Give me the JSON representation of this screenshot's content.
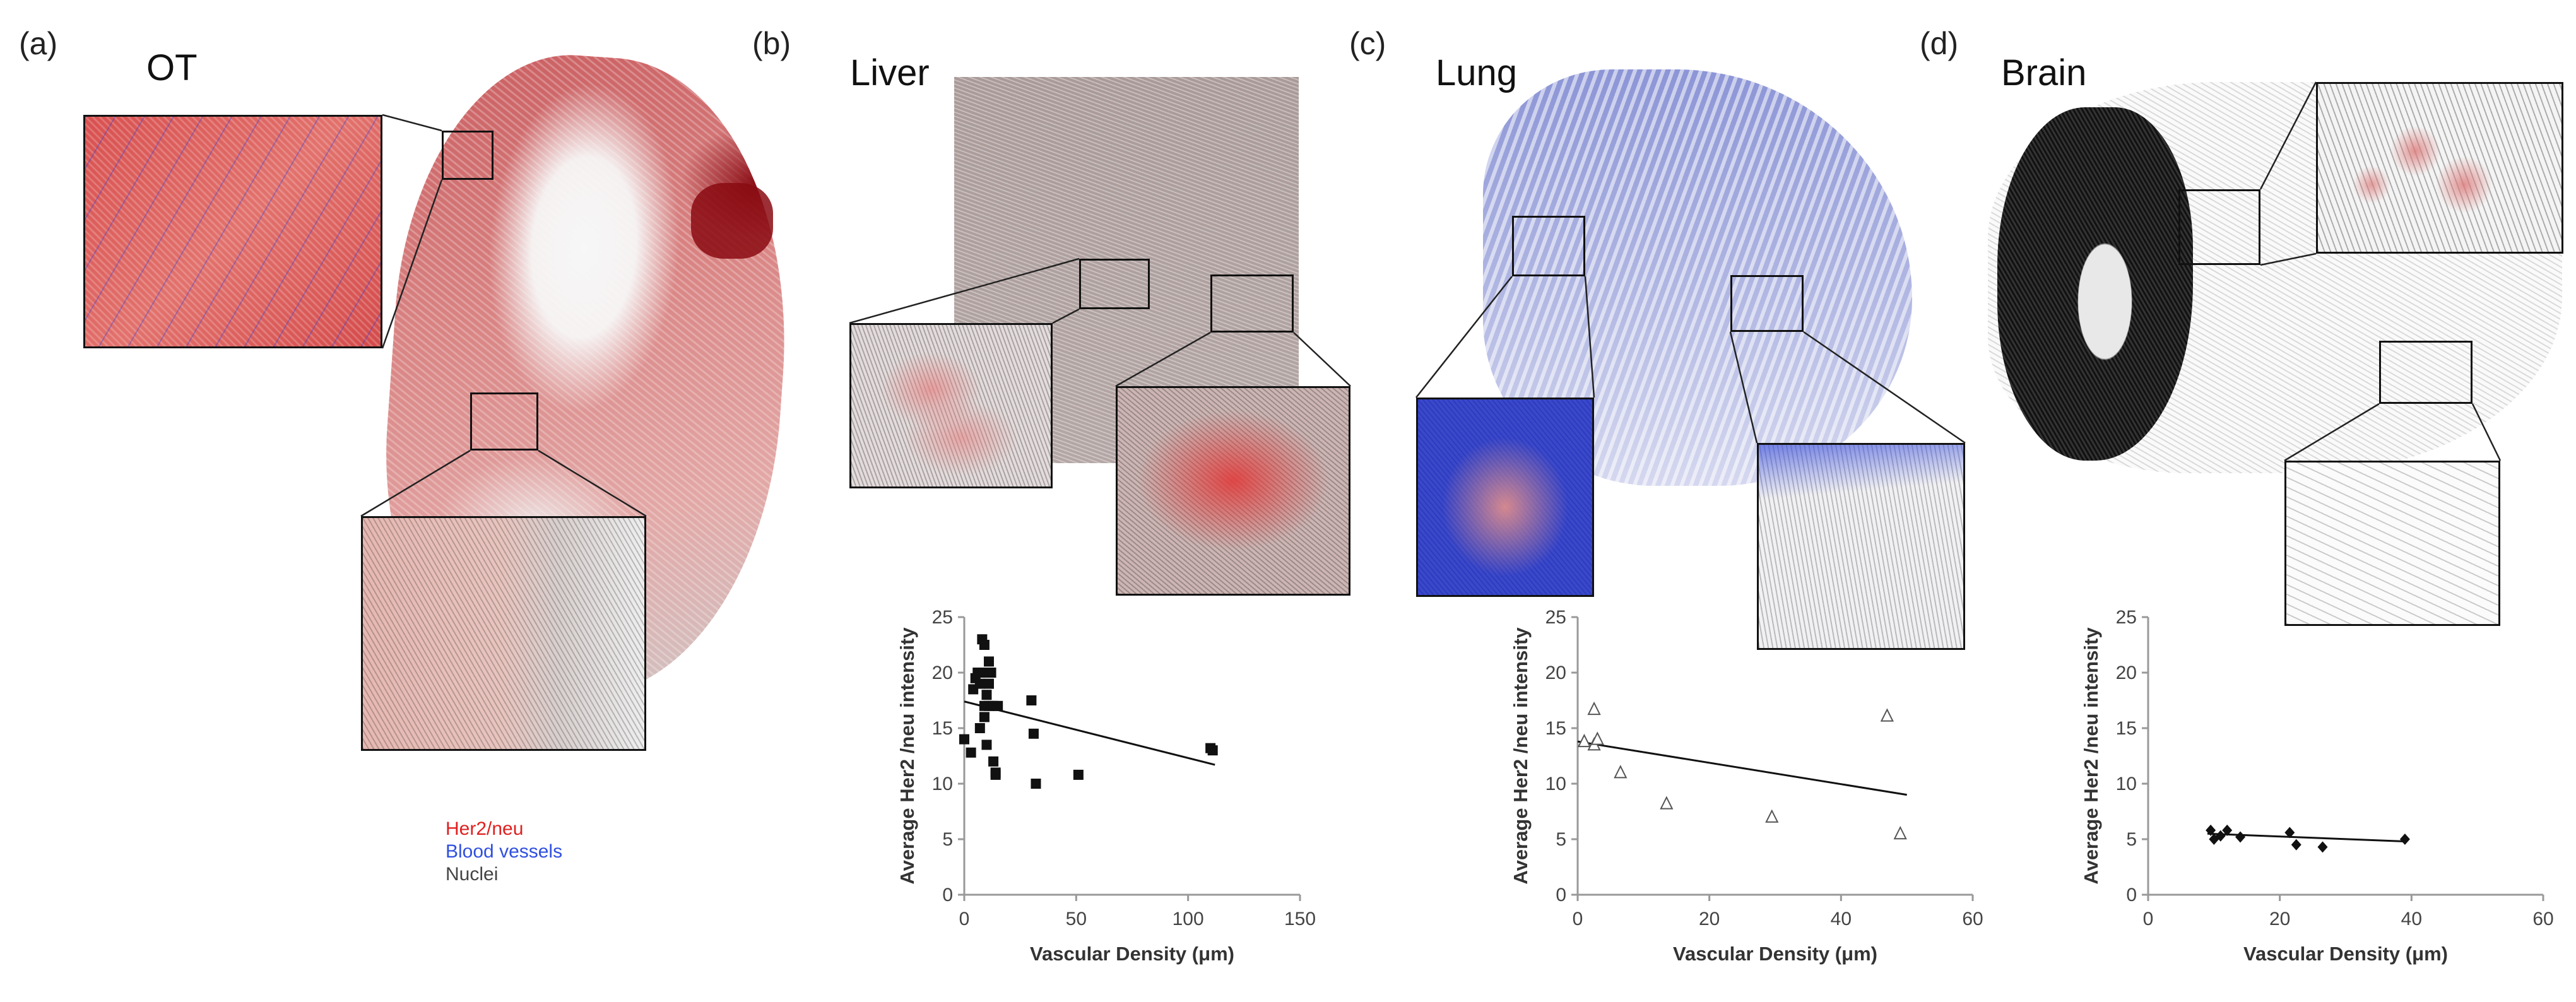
{
  "panels": {
    "a": {
      "letter": "(a)",
      "title": "OT"
    },
    "b": {
      "letter": "(b)",
      "title": "Liver"
    },
    "c": {
      "letter": "(c)",
      "title": "Lung"
    },
    "d": {
      "letter": "(d)",
      "title": "Brain"
    }
  },
  "legend": {
    "items": [
      {
        "label": "Her2/neu",
        "color": "#e02020"
      },
      {
        "label": "Blood vessels",
        "color": "#3050e0"
      },
      {
        "label": "Nuclei",
        "color": "#444444"
      }
    ]
  },
  "chart_data": [
    {
      "type": "scatter",
      "panel": "b",
      "xlabel": "Vascular Density (μm)",
      "ylabel": "Average Her2 /neu intensity",
      "xlim": [
        0,
        150
      ],
      "ylim": [
        0,
        25
      ],
      "xticks": [
        "0",
        "50",
        "100",
        "150"
      ],
      "yticks": [
        "0",
        "5",
        "10",
        "15",
        "20",
        "25"
      ],
      "marker": "square",
      "points": [
        [
          0,
          14
        ],
        [
          3,
          12.8
        ],
        [
          4,
          18.5
        ],
        [
          5,
          19.5
        ],
        [
          6,
          20
        ],
        [
          7,
          15
        ],
        [
          7,
          19
        ],
        [
          8,
          23
        ],
        [
          9,
          22.5
        ],
        [
          9,
          20
        ],
        [
          9,
          17
        ],
        [
          9,
          16
        ],
        [
          10,
          18
        ],
        [
          10,
          13.5
        ],
        [
          11,
          21
        ],
        [
          11,
          19
        ],
        [
          11,
          17
        ],
        [
          12,
          20
        ],
        [
          13,
          17
        ],
        [
          13,
          12
        ],
        [
          14,
          11
        ],
        [
          14,
          10.8
        ],
        [
          15,
          17
        ],
        [
          30,
          17.5
        ],
        [
          31,
          14.5
        ],
        [
          32,
          10
        ],
        [
          51,
          10.8
        ],
        [
          110,
          13.2
        ],
        [
          111,
          13
        ]
      ],
      "trend": {
        "x": [
          0,
          112
        ],
        "y": [
          17.4,
          11.7
        ]
      }
    },
    {
      "type": "scatter",
      "panel": "c",
      "xlabel": "Vascular Density (μm)",
      "ylabel": "Average Her2 /neu intensity",
      "xlim": [
        0,
        60
      ],
      "ylim": [
        0,
        25
      ],
      "xticks": [
        "0",
        "20",
        "40",
        "60"
      ],
      "yticks": [
        "0",
        "5",
        "10",
        "15",
        "20",
        "25"
      ],
      "marker": "triangle",
      "points": [
        [
          1,
          13.8
        ],
        [
          2.5,
          16.7
        ],
        [
          2.5,
          13.5
        ],
        [
          3,
          14
        ],
        [
          6.5,
          11
        ],
        [
          13.5,
          8.2
        ],
        [
          29.5,
          7
        ],
        [
          47,
          16.1
        ],
        [
          49,
          5.5
        ]
      ],
      "trend": {
        "x": [
          0,
          50
        ],
        "y": [
          13.8,
          9
        ]
      }
    },
    {
      "type": "scatter",
      "panel": "d",
      "xlabel": "Vascular Density (μm)",
      "ylabel": "Average Her2 /neu intensity",
      "xlim": [
        0,
        60
      ],
      "ylim": [
        0,
        25
      ],
      "xticks": [
        "0",
        "20",
        "40",
        "60"
      ],
      "yticks": [
        "0",
        "5",
        "10",
        "15",
        "20",
        "25"
      ],
      "marker": "diamond",
      "points": [
        [
          9.5,
          5.8
        ],
        [
          10,
          5
        ],
        [
          11,
          5.3
        ],
        [
          12,
          5.8
        ],
        [
          14,
          5.2
        ],
        [
          21.5,
          5.6
        ],
        [
          22.5,
          4.5
        ],
        [
          26.5,
          4.3
        ],
        [
          39,
          5
        ]
      ],
      "trend": {
        "x": [
          9,
          39
        ],
        "y": [
          5.5,
          4.8
        ]
      }
    }
  ]
}
